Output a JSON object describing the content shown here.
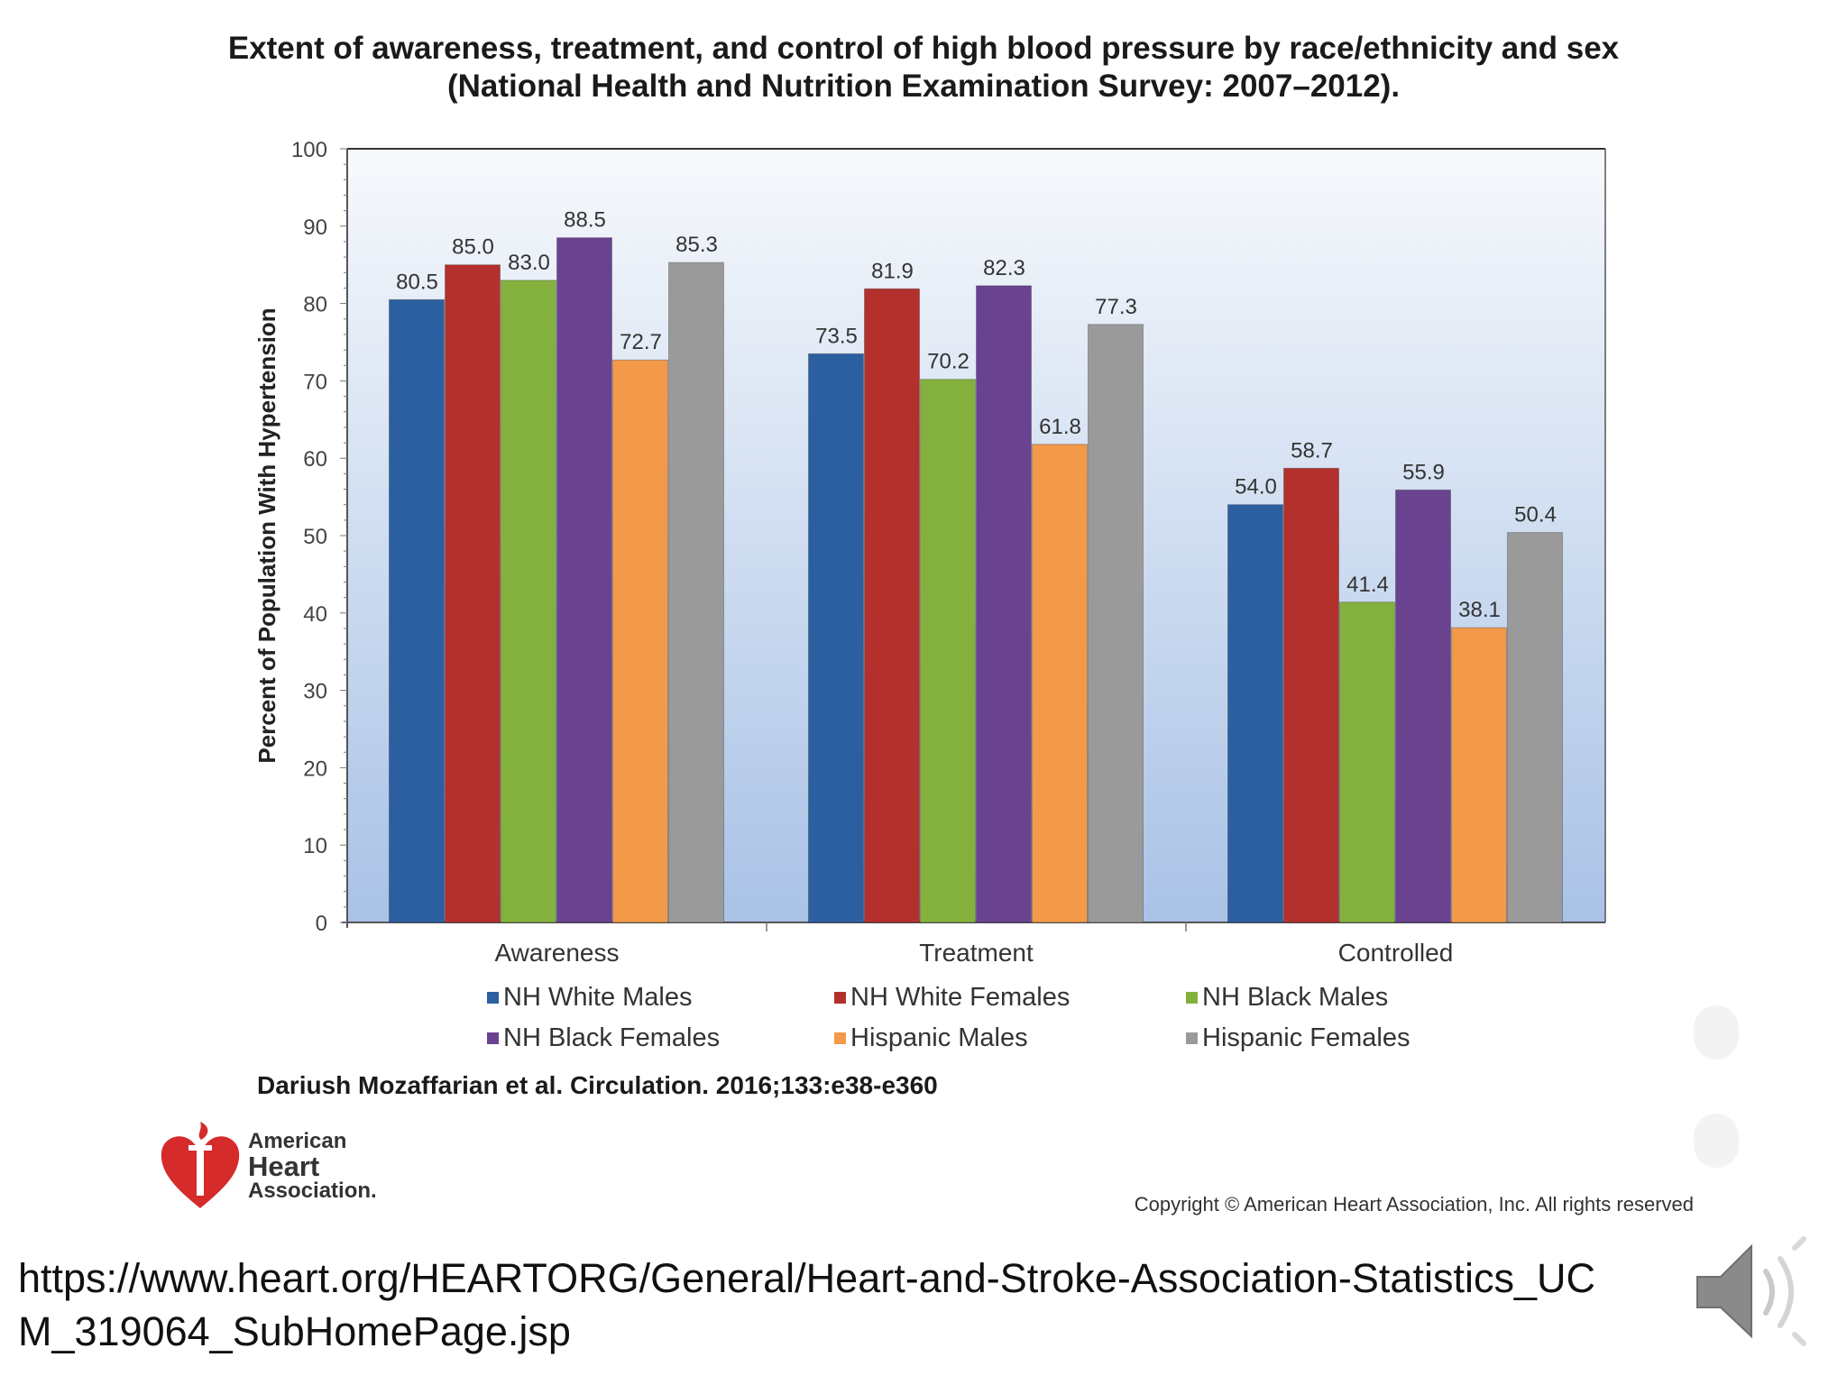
{
  "title": {
    "line1": "Extent of awareness, treatment, and control of high blood pressure by race/ethnicity and sex",
    "line2": "(National Health and Nutrition Examination Survey: 2007–2012)."
  },
  "chart_data": {
    "type": "bar",
    "title": "Extent of awareness, treatment, and control of high blood pressure by race/ethnicity and sex (National Health and Nutrition Examination Survey: 2007–2012).",
    "xlabel": "",
    "ylabel": "Percent of Population With Hypertension",
    "ylim": [
      0,
      100
    ],
    "yticks": [
      0,
      10,
      20,
      30,
      40,
      50,
      60,
      70,
      80,
      90,
      100
    ],
    "categories": [
      "Awareness",
      "Treatment",
      "Controlled"
    ],
    "grid": false,
    "legend_position": "bottom",
    "series": [
      {
        "name": "NH White Males",
        "color": "#2c5fa0",
        "values": [
          80.5,
          73.5,
          54.0
        ],
        "labels": [
          "80.5",
          "73.5",
          "54.0"
        ]
      },
      {
        "name": "NH White Females",
        "color": "#b3302c",
        "values": [
          85.0,
          81.9,
          58.7
        ],
        "labels": [
          "85.0",
          "81.9",
          "58.7"
        ]
      },
      {
        "name": "NH Black Males",
        "color": "#84b13d",
        "values": [
          83.0,
          70.2,
          41.4
        ],
        "labels": [
          "83.0",
          "70.2",
          "41.4"
        ]
      },
      {
        "name": "NH Black Females",
        "color": "#6a4390",
        "values": [
          88.5,
          82.3,
          55.9
        ],
        "labels": [
          "88.5",
          "82.3",
          "55.9"
        ]
      },
      {
        "name": "Hispanic Males",
        "color": "#f2994a",
        "values": [
          72.7,
          61.8,
          38.1
        ],
        "labels": [
          "72.7",
          "61.8",
          "38.1"
        ]
      },
      {
        "name": "Hispanic Females",
        "color": "#9a9a9a",
        "values": [
          85.3,
          77.3,
          50.4
        ],
        "labels": [
          "85.3",
          "77.3",
          "50.4"
        ]
      }
    ]
  },
  "citation": "Dariush Mozaffarian et al. Circulation. 2016;133:e38-e360",
  "logo": {
    "line1": "American",
    "line2": "Heart",
    "line3": "Association."
  },
  "copyright": "Copyright © American Heart Association, Inc. All rights reserved",
  "source_url": "https://www.heart.org/HEARTORG/General/Heart-and-Stroke-Association-Statistics_UCM_319064_SubHomePage.jsp",
  "icons": {
    "speaker": "speaker-icon",
    "logo": "heart-torch-icon"
  }
}
